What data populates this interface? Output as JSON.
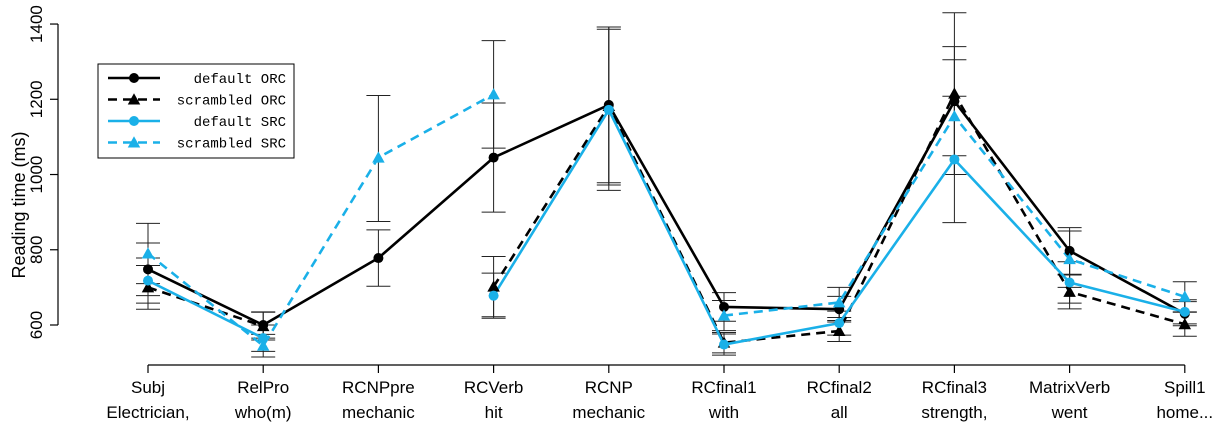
{
  "chart_data": {
    "type": "line",
    "title": "",
    "xlabel": "",
    "ylabel": "Reading time (ms)",
    "ylim": [
      540,
      1440
    ],
    "yticks": [
      600,
      800,
      1000,
      1200,
      1400
    ],
    "categories": [
      {
        "line1": "Subj",
        "line2": "Electrician,"
      },
      {
        "line1": "RelPro",
        "line2": "who(m)"
      },
      {
        "line1": "RCNPpre",
        "line2": "mechanic"
      },
      {
        "line1": "RCVerb",
        "line2": "hit"
      },
      {
        "line1": "RCNP",
        "line2": "mechanic"
      },
      {
        "line1": "RCfinal1",
        "line2": "with"
      },
      {
        "line1": "RCfinal2",
        "line2": "all"
      },
      {
        "line1": "RCfinal3",
        "line2": "strength,"
      },
      {
        "line1": "MatrixVerb",
        "line2": "went"
      },
      {
        "line1": "Spill1",
        "line2": "home..."
      }
    ],
    "series": [
      {
        "name": "default ORC",
        "color": "#000000",
        "dashed": false,
        "marker": "circle",
        "values": [
          748,
          600,
          778,
          1045,
          1185,
          648,
          642,
          1195,
          797,
          630
        ],
        "err_low": [
          678,
          565,
          703,
          900,
          978,
          610,
          608,
          1050,
          735,
          598
        ],
        "err_high": [
          818,
          635,
          853,
          1190,
          1392,
          686,
          676,
          1340,
          859,
          662
        ]
      },
      {
        "name": "scrambled ORC",
        "color": "#000000",
        "dashed": true,
        "marker": "triangle",
        "values": [
          700,
          597,
          null,
          702,
          1182,
          553,
          584,
          1215,
          688,
          602
        ],
        "err_low": [
          642,
          560,
          null,
          622,
          972,
          526,
          556,
          1000,
          643,
          570
        ],
        "err_high": [
          758,
          634,
          null,
          782,
          1392,
          580,
          612,
          1430,
          733,
          634
        ]
      },
      {
        "name": "default SRC",
        "color": "#1ab0e8",
        "dashed": false,
        "marker": "circle",
        "values": [
          718,
          565,
          null,
          678,
          1172,
          548,
          605,
          1040,
          713,
          635
        ],
        "err_low": [
          658,
          530,
          null,
          618,
          958,
          520,
          573,
          872,
          658,
          603
        ],
        "err_high": [
          778,
          600,
          null,
          738,
          1386,
          576,
          637,
          1208,
          768,
          667
        ]
      },
      {
        "name": "scrambled SRC",
        "color": "#1ab0e8",
        "dashed": true,
        "marker": "triangle",
        "values": [
          790,
          545,
          1045,
          1213,
          null,
          625,
          660,
          1155,
          775,
          675
        ],
        "err_low": [
          710,
          515,
          875,
          1070,
          null,
          585,
          620,
          1000,
          700,
          635
        ],
        "err_high": [
          870,
          575,
          1210,
          1356,
          null,
          665,
          700,
          1305,
          850,
          715
        ]
      }
    ],
    "legend_position": "top-left",
    "grid": false
  }
}
